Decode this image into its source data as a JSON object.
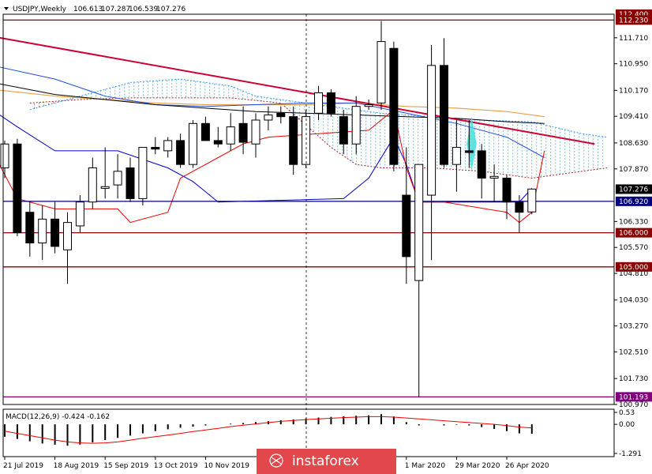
{
  "chart_data": [
    {
      "type": "candlestick",
      "title": "USDJPY,Weekly",
      "header_values": [
        "106.613",
        "107.287",
        "106.539",
        "107.276"
      ],
      "ylim": [
        100.97,
        112.4
      ],
      "y_ticks": [
        112.4,
        112.23,
        111.71,
        110.95,
        110.17,
        109.41,
        108.63,
        107.87,
        107.276,
        106.92,
        106.33,
        106.0,
        105.57,
        105.0,
        104.81,
        104.03,
        103.27,
        102.51,
        101.73,
        101.193,
        100.97
      ],
      "x_ticks": [
        {
          "label": "21 Jul 2019",
          "index": 0
        },
        {
          "label": "18 Aug 2019",
          "index": 4
        },
        {
          "label": "15 Sep 2019",
          "index": 8
        },
        {
          "label": "13 Oct 2019",
          "index": 12
        },
        {
          "label": "10 Nov 2019",
          "index": 16
        },
        {
          "label": "1 Mar 2020",
          "index": 32
        },
        {
          "label": "29 Mar 2020",
          "index": 36
        },
        {
          "label": "26 Apr 2020",
          "index": 40
        }
      ],
      "candles": [
        {
          "o": 107.9,
          "h": 108.7,
          "l": 107.6,
          "c": 108.6
        },
        {
          "o": 108.6,
          "h": 108.75,
          "l": 105.9,
          "c": 106.0
        },
        {
          "o": 106.6,
          "h": 106.9,
          "l": 105.3,
          "c": 105.7
        },
        {
          "o": 105.7,
          "h": 106.8,
          "l": 105.2,
          "c": 106.4
        },
        {
          "o": 106.4,
          "h": 106.9,
          "l": 105.4,
          "c": 105.6
        },
        {
          "o": 105.5,
          "h": 106.6,
          "l": 104.5,
          "c": 106.3
        },
        {
          "o": 106.2,
          "h": 107.1,
          "l": 106.0,
          "c": 106.9
        },
        {
          "o": 106.9,
          "h": 108.2,
          "l": 106.7,
          "c": 107.9
        },
        {
          "o": 107.3,
          "h": 108.5,
          "l": 107.0,
          "c": 107.35
        },
        {
          "o": 107.4,
          "h": 108.3,
          "l": 107.0,
          "c": 107.8
        },
        {
          "o": 107.9,
          "h": 108.2,
          "l": 106.9,
          "c": 107.0
        },
        {
          "o": 107.0,
          "h": 108.5,
          "l": 106.8,
          "c": 108.5
        },
        {
          "o": 108.5,
          "h": 108.8,
          "l": 108.3,
          "c": 108.45
        },
        {
          "o": 108.4,
          "h": 108.8,
          "l": 108.2,
          "c": 108.7
        },
        {
          "o": 108.7,
          "h": 108.9,
          "l": 107.9,
          "c": 108.0
        },
        {
          "o": 108.0,
          "h": 109.3,
          "l": 107.9,
          "c": 109.2
        },
        {
          "o": 109.2,
          "h": 109.4,
          "l": 108.7,
          "c": 108.7
        },
        {
          "o": 108.7,
          "h": 109.1,
          "l": 108.5,
          "c": 108.6
        },
        {
          "o": 108.6,
          "h": 109.5,
          "l": 108.4,
          "c": 109.1
        },
        {
          "o": 109.2,
          "h": 109.7,
          "l": 108.3,
          "c": 108.65
        },
        {
          "o": 108.6,
          "h": 109.5,
          "l": 108.2,
          "c": 109.3
        },
        {
          "o": 109.3,
          "h": 109.7,
          "l": 109.0,
          "c": 109.45
        },
        {
          "o": 109.5,
          "h": 109.7,
          "l": 109.2,
          "c": 109.4
        },
        {
          "o": 109.4,
          "h": 109.7,
          "l": 107.7,
          "c": 108.0
        },
        {
          "o": 108.0,
          "h": 109.6,
          "l": 107.9,
          "c": 109.4
        },
        {
          "o": 109.5,
          "h": 110.3,
          "l": 109.3,
          "c": 110.1
        },
        {
          "o": 110.1,
          "h": 110.2,
          "l": 109.4,
          "c": 109.5
        },
        {
          "o": 109.4,
          "h": 109.6,
          "l": 108.3,
          "c": 108.6
        },
        {
          "o": 108.6,
          "h": 110.0,
          "l": 108.3,
          "c": 109.7
        },
        {
          "o": 109.7,
          "h": 109.9,
          "l": 109.6,
          "c": 109.75
        },
        {
          "o": 109.8,
          "h": 112.2,
          "l": 109.6,
          "c": 111.6
        },
        {
          "o": 111.4,
          "h": 111.6,
          "l": 107.8,
          "c": 108.0
        },
        {
          "o": 107.1,
          "h": 108.5,
          "l": 104.5,
          "c": 105.3
        },
        {
          "o": 104.6,
          "h": 108.0,
          "l": 101.19,
          "c": 108.0
        },
        {
          "o": 107.1,
          "h": 111.5,
          "l": 105.2,
          "c": 110.9
        },
        {
          "o": 110.9,
          "h": 111.7,
          "l": 107.9,
          "c": 108.0
        },
        {
          "o": 108.0,
          "h": 109.3,
          "l": 107.2,
          "c": 108.5
        },
        {
          "o": 108.4,
          "h": 109.3,
          "l": 107.9,
          "c": 108.35
        },
        {
          "o": 108.4,
          "h": 108.6,
          "l": 107.0,
          "c": 107.6
        },
        {
          "o": 107.6,
          "h": 108.0,
          "l": 106.9,
          "c": 107.65
        },
        {
          "o": 107.6,
          "h": 107.7,
          "l": 106.4,
          "c": 106.9
        },
        {
          "o": 106.9,
          "h": 107.1,
          "l": 106.0,
          "c": 106.6
        },
        {
          "o": 106.61,
          "h": 107.29,
          "l": 106.54,
          "c": 107.28
        }
      ],
      "lines": {
        "trendline": [
          [
            -1,
            111.75
          ],
          [
            47,
            108.6
          ]
        ],
        "blue_ma": [
          [
            -1,
            110.9
          ],
          [
            4,
            110.5
          ],
          [
            8,
            110.0
          ],
          [
            12,
            109.75
          ],
          [
            16,
            109.7
          ],
          [
            20,
            109.75
          ],
          [
            24,
            109.8
          ],
          [
            28,
            109.8
          ],
          [
            32,
            109.5
          ],
          [
            36,
            109.2
          ],
          [
            40,
            108.8
          ],
          [
            43,
            108.2
          ]
        ],
        "orange_ma": [
          [
            -1,
            110.2
          ],
          [
            4,
            110.0
          ],
          [
            8,
            109.9
          ],
          [
            12,
            109.8
          ],
          [
            16,
            109.75
          ],
          [
            20,
            109.75
          ],
          [
            24,
            109.75
          ],
          [
            28,
            109.8
          ],
          [
            32,
            109.7
          ],
          [
            36,
            109.65
          ],
          [
            40,
            109.55
          ],
          [
            43,
            109.4
          ]
        ],
        "black_ma": [
          [
            -1,
            110.4
          ],
          [
            4,
            110.05
          ],
          [
            8,
            109.9
          ],
          [
            12,
            109.75
          ],
          [
            16,
            109.65
          ],
          [
            20,
            109.55
          ],
          [
            24,
            109.5
          ],
          [
            28,
            109.45
          ],
          [
            32,
            109.4
          ],
          [
            36,
            109.35
          ],
          [
            40,
            109.25
          ],
          [
            43,
            109.2
          ]
        ],
        "kijun": [
          [
            -1,
            109.6
          ],
          [
            1,
            109.1
          ],
          [
            4,
            108.4
          ],
          [
            9,
            108.4
          ],
          [
            13,
            107.9
          ],
          [
            15,
            107.5
          ],
          [
            17,
            106.9
          ],
          [
            27,
            107.0
          ],
          [
            29,
            107.6
          ],
          [
            31,
            108.8
          ],
          [
            32,
            108.0
          ],
          [
            33,
            106.9
          ],
          [
            41,
            106.9
          ],
          [
            42,
            107.3
          ]
        ],
        "tenkan": [
          [
            -1,
            108.4
          ],
          [
            1,
            107.0
          ],
          [
            4,
            106.7
          ],
          [
            9,
            106.7
          ],
          [
            10,
            106.3
          ],
          [
            13,
            106.6
          ],
          [
            14,
            107.6
          ],
          [
            17,
            108.2
          ],
          [
            19,
            108.6
          ],
          [
            20,
            108.7
          ],
          [
            21,
            108.8
          ],
          [
            29,
            109.0
          ],
          [
            31,
            109.6
          ],
          [
            32,
            107.9
          ],
          [
            33,
            106.9
          ],
          [
            35,
            106.9
          ],
          [
            40,
            106.6
          ],
          [
            41,
            106.3
          ],
          [
            42,
            106.6
          ],
          [
            43,
            108.4
          ]
        ]
      },
      "cloud": {
        "span_a": [
          [
            2,
            109.6
          ],
          [
            6,
            110.0
          ],
          [
            10,
            110.4
          ],
          [
            14,
            110.5
          ],
          [
            18,
            110.3
          ],
          [
            20,
            110.0
          ],
          [
            24,
            109.8
          ],
          [
            28,
            109.6
          ],
          [
            30,
            109.5
          ],
          [
            34,
            109.4
          ],
          [
            38,
            109.3
          ],
          [
            42,
            109.25
          ],
          [
            46,
            108.9
          ],
          [
            48,
            108.8
          ]
        ],
        "span_b": [
          [
            2,
            109.8
          ],
          [
            6,
            109.9
          ],
          [
            10,
            109.95
          ],
          [
            14,
            109.95
          ],
          [
            18,
            109.95
          ],
          [
            22,
            109.8
          ],
          [
            26,
            108.5
          ],
          [
            28,
            108.0
          ],
          [
            30,
            107.9
          ],
          [
            34,
            107.9
          ],
          [
            38,
            107.8
          ],
          [
            42,
            107.6
          ],
          [
            46,
            107.8
          ],
          [
            48,
            107.9
          ]
        ]
      },
      "horizontal_levels": [
        {
          "value": 112.23,
          "color": "#8b0000"
        },
        {
          "value": 106.92,
          "color": "#000080"
        },
        {
          "value": 106.0,
          "color": "#8b0000"
        },
        {
          "value": 105.0,
          "color": "#8b0000"
        },
        {
          "value": 101.193,
          "color": "#800080"
        }
      ],
      "price_tags": [
        {
          "label": "112.400",
          "value": 112.4,
          "bg": "#8b0000",
          "fg": "#ffffff"
        },
        {
          "label": "112.230",
          "value": 112.23,
          "bg": "#8b0000",
          "fg": "#ffffff"
        },
        {
          "label": "107.276",
          "value": 107.276,
          "bg": "#000000",
          "fg": "#ffffff"
        },
        {
          "label": "106.920",
          "value": 106.92,
          "bg": "#000080",
          "fg": "#ffffff"
        },
        {
          "label": "106.000",
          "value": 106.0,
          "bg": "#8b0000",
          "fg": "#ffffff"
        },
        {
          "label": "105.000",
          "value": 105.0,
          "bg": "#8b0000",
          "fg": "#ffffff"
        },
        {
          "label": "101.193",
          "value": 101.193,
          "bg": "#800080",
          "fg": "#ffffff"
        }
      ],
      "plain_ticks": [
        "111.710",
        "110.950",
        "110.170",
        "109.410",
        "108.630",
        "107.870",
        "106.330",
        "105.570",
        "104.810",
        "104.030",
        "103.270",
        "102.510",
        "101.730",
        "100.970"
      ]
    },
    {
      "type": "macd",
      "label": "MACD(12,26,9) -0.424 -0.162",
      "ylim": [
        -1.291,
        0.53
      ],
      "y_ticks": [
        "0.53",
        "0.00",
        "-1.291"
      ],
      "histogram": [
        -0.55,
        -0.65,
        -0.75,
        -0.85,
        -0.9,
        -0.95,
        -0.9,
        -0.8,
        -0.7,
        -0.6,
        -0.5,
        -0.4,
        -0.3,
        -0.22,
        -0.15,
        -0.1,
        -0.05,
        0.0,
        0.03,
        0.06,
        0.1,
        0.14,
        0.18,
        0.22,
        0.26,
        0.3,
        0.33,
        0.36,
        0.38,
        0.4,
        0.45,
        0.35,
        0.1,
        -0.05,
        0.0,
        -0.05,
        -0.02,
        -0.05,
        -0.12,
        -0.2,
        -0.3,
        -0.4,
        -0.42
      ],
      "signal": [
        -0.3,
        -0.4,
        -0.5,
        -0.6,
        -0.7,
        -0.78,
        -0.82,
        -0.84,
        -0.82,
        -0.78,
        -0.7,
        -0.62,
        -0.55,
        -0.48,
        -0.4,
        -0.32,
        -0.25,
        -0.18,
        -0.1,
        -0.04,
        0.02,
        0.08,
        0.13,
        0.17,
        0.21,
        0.24,
        0.27,
        0.3,
        0.32,
        0.34,
        0.34,
        0.32,
        0.28,
        0.24,
        0.2,
        0.16,
        0.12,
        0.08,
        0.04,
        0.0,
        -0.06,
        -0.12,
        -0.16
      ]
    }
  ],
  "watermark": "instaforex",
  "colors": {
    "bull_body": "#ffffff",
    "bear_body": "#000000",
    "trendline": "#cc0033",
    "blue_ma": "#1f4fe0",
    "orange_ma": "#e8a04a",
    "black_ma": "#000000",
    "kijun": "#0000cc",
    "tenkan": "#ee0000",
    "cloud_a": "#3399ff",
    "cloud_b": "#aa2222",
    "watermark_bg": "#e2474b",
    "highlight": "#44dddd"
  }
}
